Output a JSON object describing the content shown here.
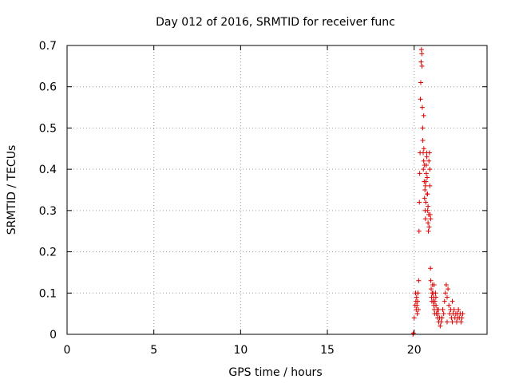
{
  "chart_data": {
    "type": "scatter",
    "title": "Day 012 of 2016, SRMTID for receiver func",
    "xlabel": "GPS time / hours",
    "ylabel": "SRMTID / TECUs",
    "xlim": [
      0,
      24.2
    ],
    "ylim": [
      0,
      0.7
    ],
    "xticks": [
      0,
      5,
      10,
      15,
      20
    ],
    "xtick_labels": [
      "0",
      "5",
      "10",
      "15",
      "20"
    ],
    "yticks": [
      0,
      0.1,
      0.2,
      0.3,
      0.4,
      0.5,
      0.6,
      0.7
    ],
    "ytick_labels": [
      "0",
      "0.1",
      "0.2",
      "0.3",
      "0.4",
      "0.5",
      "0.6",
      "0.7"
    ],
    "grid": true,
    "marker": "plus",
    "color": "#dd0000",
    "series": [
      {
        "name": "SRMTID",
        "x": [
          19.93,
          19.96,
          20.0,
          20.05,
          20.08,
          20.1,
          20.12,
          20.14,
          20.16,
          20.18,
          20.2,
          20.22,
          20.24,
          20.26,
          20.28,
          20.3,
          20.32,
          20.34,
          20.36,
          20.38,
          20.4,
          20.42,
          20.44,
          20.45,
          20.47,
          20.49,
          20.5,
          20.52,
          20.53,
          20.55,
          20.56,
          20.58,
          20.6,
          20.62,
          20.63,
          20.65,
          20.67,
          20.68,
          20.7,
          20.72,
          20.73,
          20.75,
          20.77,
          20.78,
          20.8,
          20.82,
          20.84,
          20.86,
          20.88,
          20.9,
          20.92,
          20.94,
          20.96,
          20.98,
          21.0,
          21.02,
          21.04,
          21.06,
          21.08,
          21.1,
          21.12,
          21.14,
          21.16,
          21.18,
          21.2,
          21.23,
          21.26,
          21.29,
          21.32,
          21.35,
          21.38,
          21.42,
          21.46,
          21.5,
          21.55,
          21.6,
          21.65,
          21.7,
          21.75,
          21.8,
          21.85,
          21.9,
          21.95,
          22.0,
          22.05,
          22.1,
          22.15,
          22.2,
          22.25,
          22.3,
          22.35,
          22.4,
          22.45,
          22.5,
          22.55,
          22.6,
          22.65,
          22.7,
          22.75,
          22.8,
          20.55,
          20.6,
          20.65,
          20.7,
          20.75,
          20.8,
          20.85,
          20.9,
          20.95,
          21.15,
          21.25,
          21.4,
          21.6,
          21.9,
          22.2,
          22.5
        ],
        "y": [
          0.0,
          0.003,
          0.04,
          0.07,
          0.1,
          0.08,
          0.06,
          0.09,
          0.07,
          0.05,
          0.08,
          0.1,
          0.06,
          0.13,
          0.25,
          0.32,
          0.39,
          0.44,
          0.57,
          0.61,
          0.66,
          0.69,
          0.68,
          0.65,
          0.55,
          0.5,
          0.47,
          0.44,
          0.4,
          0.42,
          0.45,
          0.37,
          0.33,
          0.35,
          0.3,
          0.28,
          0.32,
          0.37,
          0.41,
          0.44,
          0.43,
          0.38,
          0.34,
          0.3,
          0.27,
          0.25,
          0.29,
          0.26,
          0.44,
          0.4,
          0.29,
          0.16,
          0.13,
          0.11,
          0.09,
          0.08,
          0.1,
          0.12,
          0.1,
          0.08,
          0.09,
          0.07,
          0.06,
          0.05,
          0.08,
          0.1,
          0.07,
          0.05,
          0.06,
          0.04,
          0.05,
          0.03,
          0.04,
          0.02,
          0.03,
          0.04,
          0.06,
          0.05,
          0.08,
          0.1,
          0.12,
          0.09,
          0.11,
          0.07,
          0.05,
          0.06,
          0.04,
          0.03,
          0.05,
          0.06,
          0.04,
          0.05,
          0.03,
          0.04,
          0.06,
          0.04,
          0.05,
          0.03,
          0.04,
          0.05,
          0.53,
          0.41,
          0.36,
          0.39,
          0.34,
          0.31,
          0.42,
          0.36,
          0.28,
          0.12,
          0.09,
          0.06,
          0.04,
          0.03,
          0.08,
          0.05
        ]
      }
    ]
  }
}
